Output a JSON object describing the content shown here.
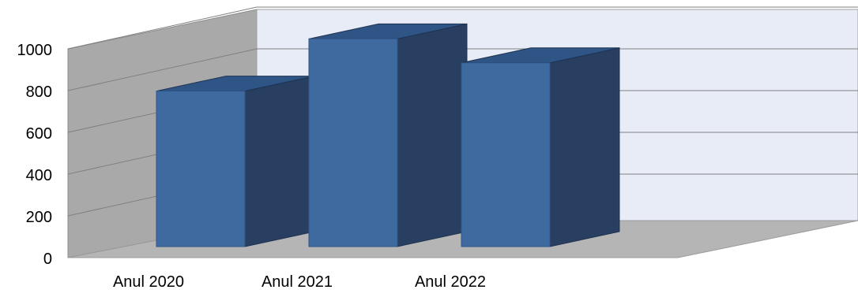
{
  "chart_data": {
    "type": "bar",
    "style": "3d-column",
    "categories": [
      "Anul 2020",
      "Anul 2021",
      "Anul 2022"
    ],
    "series": [
      {
        "values": [
          745,
          995,
          880
        ]
      }
    ],
    "y_ticks": [
      "0",
      "200",
      "400",
      "600",
      "800",
      "1000"
    ],
    "ylim": [
      0,
      1000
    ],
    "grid": true,
    "legend": "none",
    "colors": {
      "bar_front": "#3f6aa0",
      "bar_side": "#283f62",
      "bar_top": "#2f5587",
      "back_wall": "#e8ecf6",
      "side_wall": "#a9a9a9",
      "floor": "#b5b5b5",
      "gridline": "#808080"
    }
  }
}
